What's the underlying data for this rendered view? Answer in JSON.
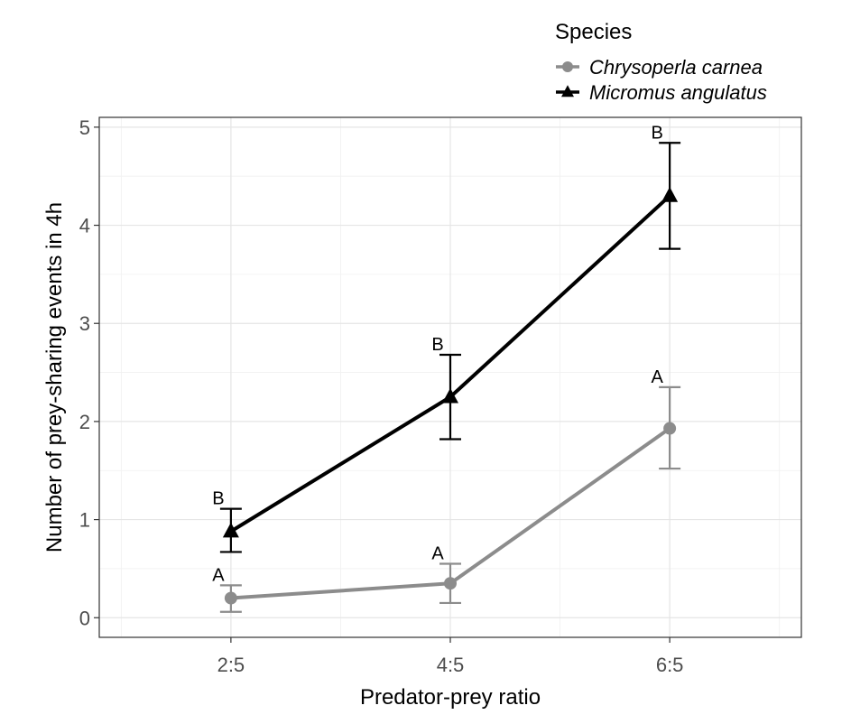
{
  "chart_data": {
    "type": "line",
    "categories": [
      "2:5",
      "4:5",
      "6:5"
    ],
    "xlabel": "Predator-prey ratio",
    "ylabel": "Number of prey-sharing events in 4h",
    "ylim": [
      -0.2,
      5.1
    ],
    "yticks": [
      0,
      1,
      2,
      3,
      4,
      5
    ],
    "grid": true,
    "legend": {
      "title": "Species",
      "placement": "top-right"
    },
    "series": [
      {
        "name": "Chrysoperla carnea",
        "color": "#8c8c8c",
        "marker": "circle",
        "values": [
          0.2,
          0.35,
          1.93
        ],
        "lower": [
          0.06,
          0.15,
          1.52
        ],
        "upper": [
          0.33,
          0.55,
          2.35
        ],
        "labels": [
          "A",
          "A",
          "A"
        ]
      },
      {
        "name": "Micromus angulatus",
        "color": "#000000",
        "marker": "triangle",
        "values": [
          0.88,
          2.25,
          4.3
        ],
        "lower": [
          0.67,
          1.82,
          3.76
        ],
        "upper": [
          1.11,
          2.68,
          4.84
        ],
        "labels": [
          "B",
          "B",
          "B"
        ]
      }
    ]
  }
}
